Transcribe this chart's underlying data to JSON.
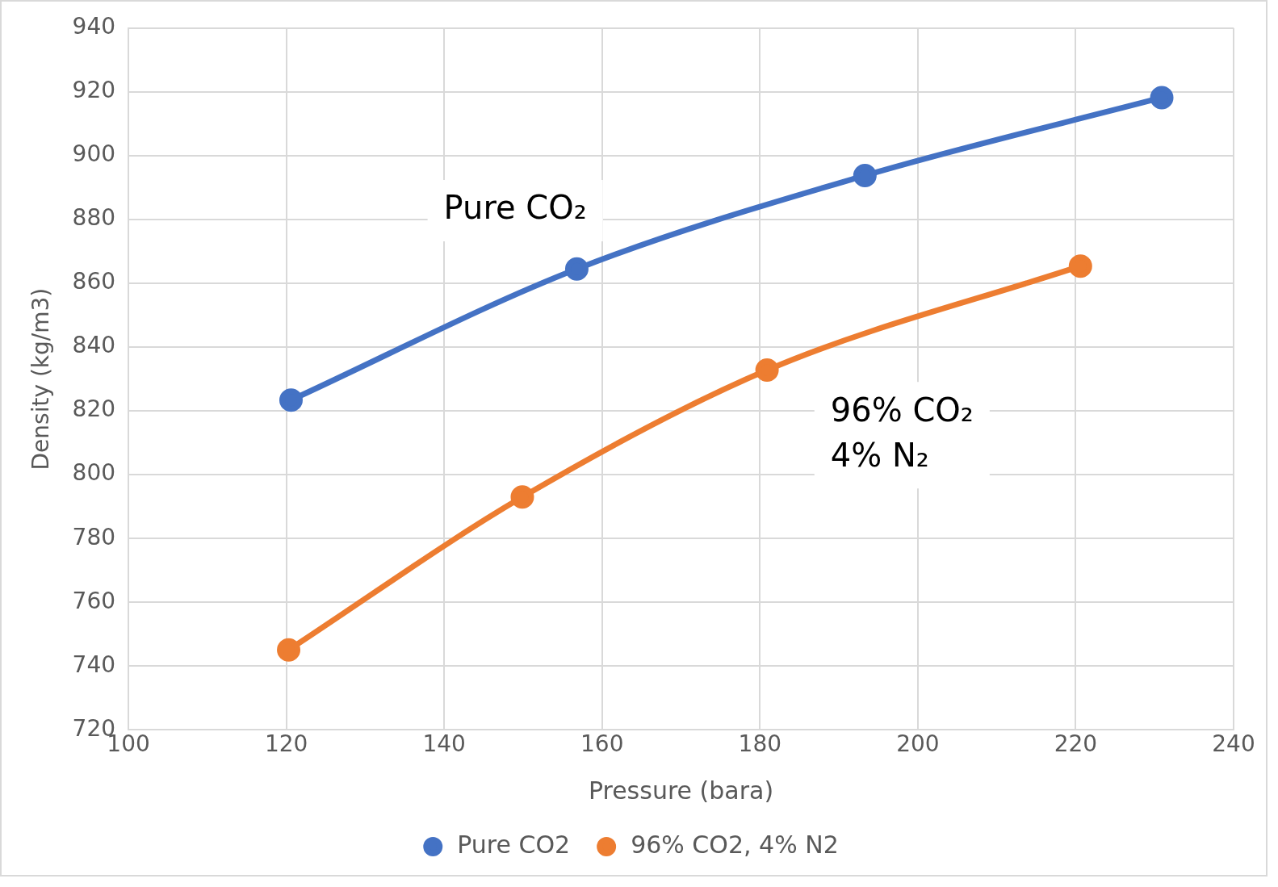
{
  "chart_data": {
    "type": "line",
    "xlabel": "Pressure (bara)",
    "ylabel": "Density (kg/m3)",
    "xlim": [
      100,
      240
    ],
    "xticks": [
      100,
      120,
      140,
      160,
      180,
      200,
      220,
      240
    ],
    "ylim": [
      720,
      940
    ],
    "yticks": [
      720,
      740,
      760,
      780,
      800,
      820,
      840,
      860,
      880,
      900,
      920,
      940
    ],
    "grid": true,
    "legend": "bottom",
    "marker": "circle",
    "line_style": "solid",
    "series": [
      {
        "name": "Pure CO2",
        "color": "#4472c4",
        "x": [
          120.6,
          156.8,
          193.3,
          230.9
        ],
        "values": [
          823.4,
          864.5,
          893.8,
          918.2
        ]
      },
      {
        "name": "96% CO2, 4% N2",
        "color": "#ed7d31",
        "x": [
          120.3,
          149.9,
          180.9,
          220.6
        ],
        "values": [
          745.1,
          793,
          832.8,
          865.4
        ]
      }
    ],
    "annotations": [
      "Pure CO₂",
      "96% CO₂\n4% N₂"
    ]
  }
}
